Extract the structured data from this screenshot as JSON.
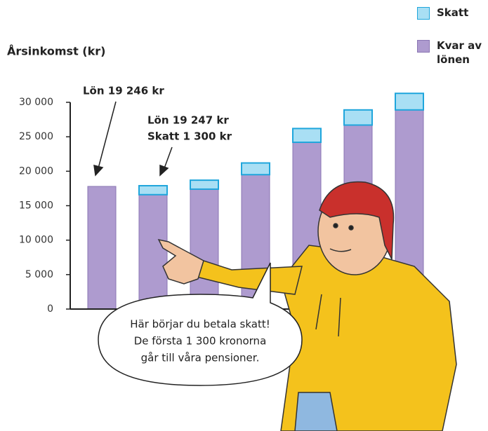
{
  "chart_data": {
    "type": "stacked-bar",
    "y_label": "Årsinkomst (kr)",
    "categories": [
      null,
      null,
      null,
      null,
      null,
      null,
      null
    ],
    "series": [
      {
        "name": "Skatt",
        "color": "#a9dff4",
        "values": [
          0,
          1300,
          1300,
          1700,
          2000,
          2200,
          2400
        ]
      },
      {
        "name": "Kvar av lönen",
        "color": "#ae9bcf",
        "values": [
          17800,
          16600,
          17400,
          19500,
          24200,
          26700,
          28900
        ]
      }
    ],
    "ylim": [
      0,
      30000
    ],
    "yticks": [
      0,
      {
        "value": 5000,
        "label": "5 000"
      },
      {
        "value": 10000,
        "label": "10 000"
      },
      {
        "value": 15000,
        "label": "15 000"
      },
      {
        "value": 20000,
        "label": "20 000"
      },
      {
        "value": 25000,
        "label": "25 000"
      },
      {
        "value": 30000,
        "label": "30 000"
      }
    ],
    "annotations": [
      "Lön 19 246 kr",
      "Lön 19 247 kr",
      "Skatt 1 300 kr"
    ],
    "speech_bubble": [
      "Här börjar du betala skatt!",
      "De första 1 300 kronorna",
      "går till våra pensioner."
    ]
  }
}
